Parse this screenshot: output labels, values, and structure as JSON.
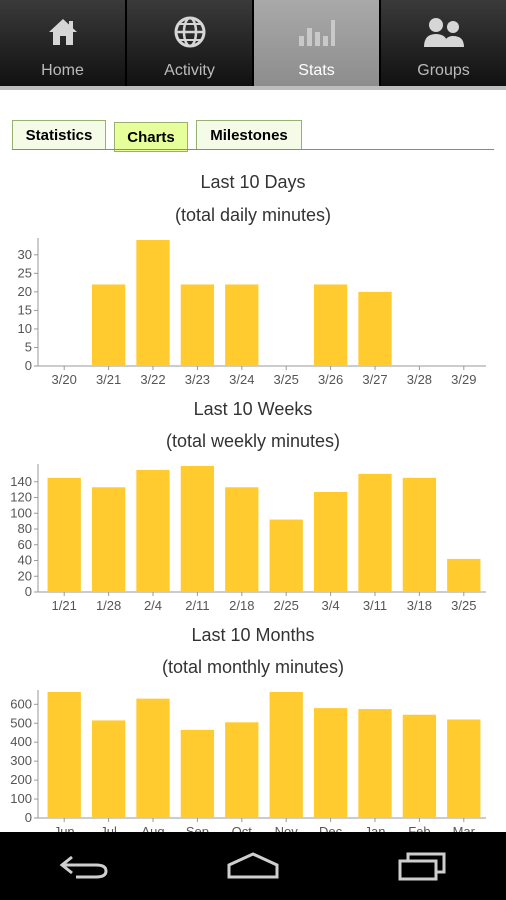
{
  "tabs": [
    {
      "label": "Home",
      "icon": "home-icon"
    },
    {
      "label": "Activity",
      "icon": "globe-icon"
    },
    {
      "label": "Stats",
      "icon": "stats-icon",
      "active": true
    },
    {
      "label": "Groups",
      "icon": "groups-icon"
    }
  ],
  "subtabs": [
    {
      "label": "Statistics"
    },
    {
      "label": "Charts",
      "active": true
    },
    {
      "label": "Milestones"
    }
  ],
  "accent_bar_color": "#FFCB2F",
  "chart_data": [
    {
      "type": "bar",
      "title": "Last 10 Days",
      "subtitle": "(total daily minutes)",
      "categories": [
        "3/20",
        "3/21",
        "3/22",
        "3/23",
        "3/24",
        "3/25",
        "3/26",
        "3/27",
        "3/28",
        "3/29"
      ],
      "values": [
        0,
        22,
        34,
        22,
        22,
        0,
        22,
        20,
        0,
        0
      ],
      "ylim": [
        0,
        34
      ],
      "yticks": [
        0,
        5,
        10,
        15,
        20,
        25,
        30
      ]
    },
    {
      "type": "bar",
      "title": "Last 10 Weeks",
      "subtitle": "(total weekly minutes)",
      "categories": [
        "1/21",
        "1/28",
        "2/4",
        "2/11",
        "2/18",
        "2/25",
        "3/4",
        "3/11",
        "3/18",
        "3/25"
      ],
      "values": [
        145,
        133,
        155,
        160,
        133,
        92,
        127,
        150,
        145,
        42
      ],
      "ylim": [
        0,
        160
      ],
      "yticks": [
        0,
        20,
        40,
        60,
        80,
        100,
        120,
        140
      ]
    },
    {
      "type": "bar",
      "title": "Last 10 Months",
      "subtitle": "(total monthly minutes)",
      "categories": [
        "Jun",
        "Jul",
        "Aug",
        "Sep",
        "Oct",
        "Nov",
        "Dec",
        "Jan",
        "Feb",
        "Mar"
      ],
      "values": [
        665,
        515,
        630,
        465,
        505,
        665,
        580,
        575,
        545,
        520
      ],
      "ylim": [
        0,
        665
      ],
      "yticks": [
        0,
        100,
        200,
        300,
        400,
        500,
        600
      ]
    }
  ],
  "navbar": [
    {
      "icon": "back-icon"
    },
    {
      "icon": "home-outline-icon"
    },
    {
      "icon": "recent-apps-icon"
    }
  ]
}
